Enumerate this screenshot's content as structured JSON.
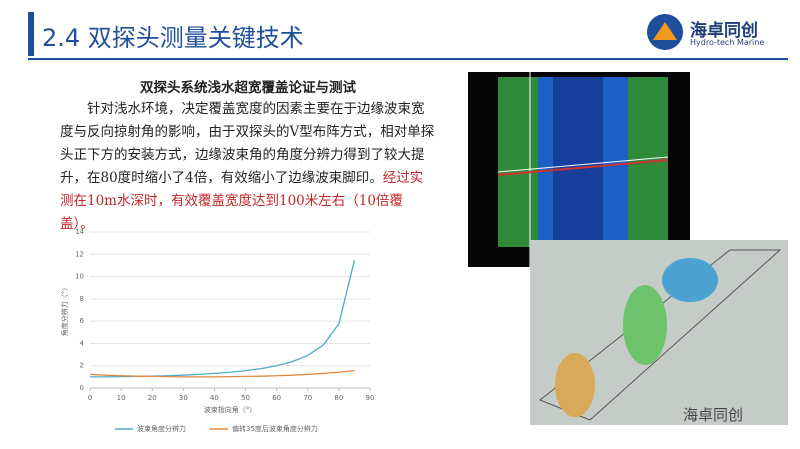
{
  "header": {
    "title": "2.4 双探头测量关键技术",
    "logo_name": "海卓同创",
    "logo_sub": "Hydro-tech Marine"
  },
  "body": {
    "heading": "双探头系统浅水超宽覆盖论证与测试",
    "paragraph": "针对浅水环境，决定覆盖宽度的因素主要在于边缘波束宽度与反向掠射角的影响，由于双探头的V型布阵方式，相对单探头正下方的安装方式，边缘波束角的角度分辨力得到了较大提升，在80度时缩小了4倍，有效缩小了边缘波束脚印。",
    "highlight": "经过实测在10m水深时，有效覆盖宽度达到100米左右（10倍覆盖）。"
  },
  "chart": {
    "type": "line",
    "x_label": "波束指向角（°）",
    "y_label": "角度分辨力（°）",
    "x": [
      0,
      5,
      10,
      15,
      20,
      25,
      30,
      35,
      40,
      45,
      50,
      55,
      60,
      65,
      70,
      75,
      80,
      85
    ],
    "series": [
      {
        "name": "波束角度分辨力",
        "color": "#4bacc6",
        "values": [
          1,
          1,
          1.02,
          1.04,
          1.06,
          1.1,
          1.15,
          1.22,
          1.31,
          1.41,
          1.56,
          1.74,
          2,
          2.37,
          2.92,
          3.86,
          5.76,
          11.47
        ]
      },
      {
        "name": "偏转35度后波束角度分辨力",
        "color": "#e3883c",
        "values": [
          1.22,
          1.15,
          1.1,
          1.06,
          1.04,
          1.02,
          1,
          1,
          1,
          1.02,
          1.04,
          1.06,
          1.1,
          1.15,
          1.22,
          1.31,
          1.41,
          1.56
        ]
      }
    ],
    "xlim": [
      0,
      90
    ],
    "xticks": [
      0,
      10,
      20,
      30,
      40,
      50,
      60,
      70,
      80,
      90
    ],
    "ylim": [
      0,
      14
    ],
    "yticks": [
      0,
      2,
      4,
      6,
      8,
      10,
      12,
      14
    ],
    "grid": true
  },
  "watermark": "海卓同创"
}
